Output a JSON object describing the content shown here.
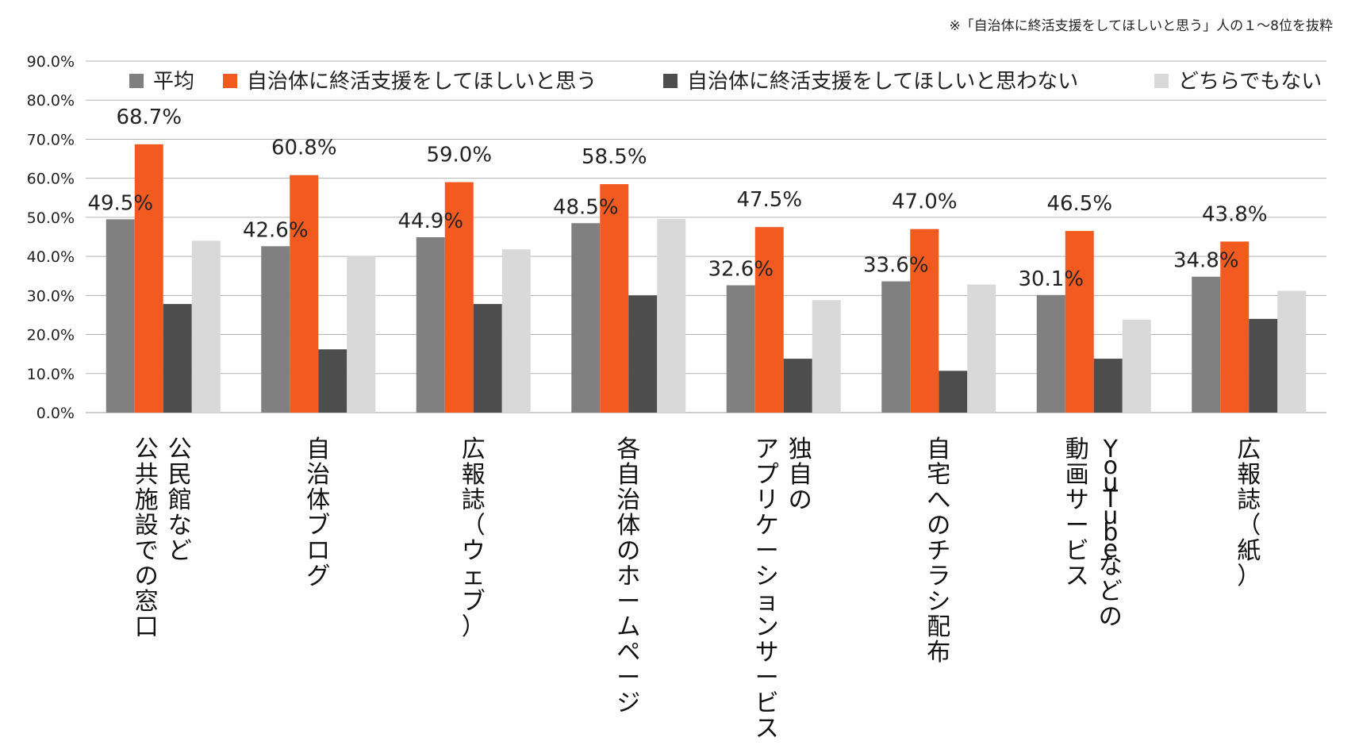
{
  "chart_data": {
    "type": "bar",
    "note": "※「自治体に終活支援をしてほしいと思う」人の１～8位を抜粋",
    "categories": [
      [
        "公民館など",
        "公共施設での窓口"
      ],
      [
        "自治体ブログ"
      ],
      [
        "広報誌（ウェブ）"
      ],
      [
        "各自治体のホームページ"
      ],
      [
        "独自の",
        "アプリケーションサービス"
      ],
      [
        "自宅へのチラシ配布"
      ],
      [
        "YouTubeなどの",
        "動画サービス"
      ],
      [
        "広報誌（紙）"
      ]
    ],
    "series": [
      {
        "name": "平均",
        "color": "#808080",
        "values": [
          49.5,
          42.6,
          44.9,
          48.5,
          32.6,
          33.6,
          30.1,
          34.8
        ],
        "labels_shown": true
      },
      {
        "name": "自治体に終活支援をしてほしいと思う",
        "color": "#F25A1F",
        "values": [
          68.7,
          60.8,
          59.0,
          58.5,
          47.5,
          47.0,
          46.5,
          43.8
        ],
        "labels_shown": true
      },
      {
        "name": "自治体に終活支援をしてほしいと思わない",
        "color": "#4D4D4D",
        "values": [
          27.8,
          16.2,
          27.8,
          30.0,
          13.8,
          10.7,
          13.8,
          24.0
        ],
        "labels_shown": false
      },
      {
        "name": "どちらでもない",
        "color": "#D9D9D9",
        "values": [
          44.0,
          40.0,
          41.8,
          49.6,
          28.8,
          32.8,
          23.8,
          31.2
        ],
        "labels_shown": false
      }
    ],
    "yticks": [
      "0.0%",
      "10.0%",
      "20.0%",
      "30.0%",
      "40.0%",
      "50.0%",
      "60.0%",
      "70.0%",
      "80.0%",
      "90.0%"
    ],
    "ylim": [
      0,
      90
    ],
    "grid": true,
    "legend_position": "top"
  }
}
